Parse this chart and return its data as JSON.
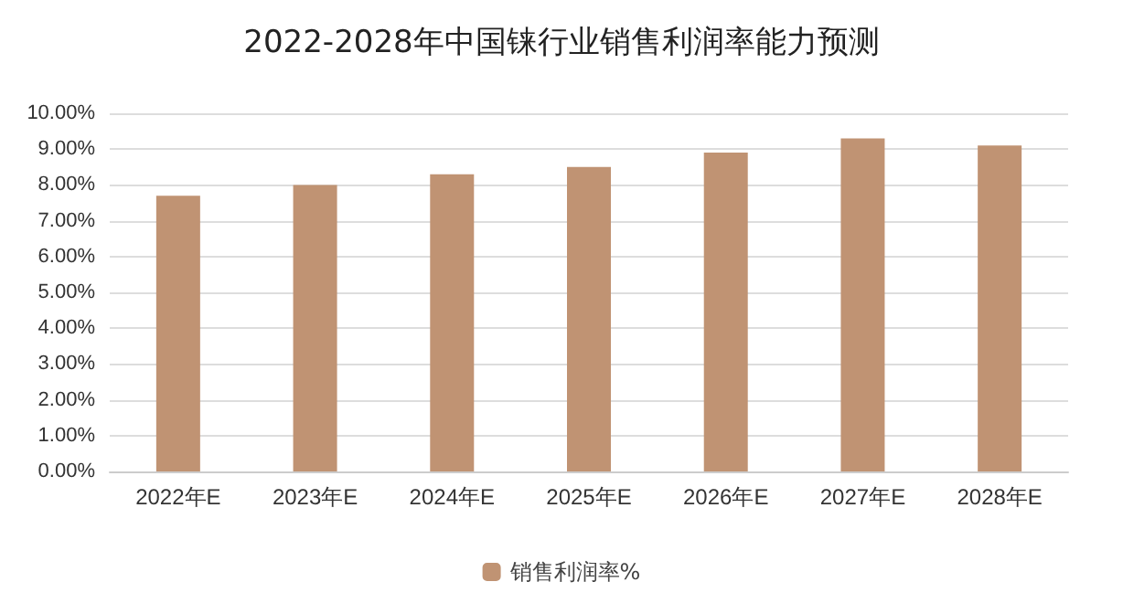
{
  "chart_data": {
    "type": "bar",
    "title": "2022-2028年中国铼行业销售利润率能力预测",
    "categories": [
      "2022年E",
      "2023年E",
      "2024年E",
      "2025年E",
      "2026年E",
      "2027年E",
      "2028年E"
    ],
    "series": [
      {
        "name": "销售利润率%",
        "color": "#c09373",
        "values": [
          7.7,
          8.0,
          8.3,
          8.5,
          8.9,
          9.3,
          9.1
        ]
      }
    ],
    "ylim": [
      0,
      10
    ],
    "yticks": [
      {
        "value": 0,
        "label": "0.00%"
      },
      {
        "value": 1,
        "label": "1.00%"
      },
      {
        "value": 2,
        "label": "2.00%"
      },
      {
        "value": 3,
        "label": "3.00%"
      },
      {
        "value": 4,
        "label": "4.00%"
      },
      {
        "value": 5,
        "label": "5.00%"
      },
      {
        "value": 6,
        "label": "6.00%"
      },
      {
        "value": 7,
        "label": "7.00%"
      },
      {
        "value": 8,
        "label": "8.00%"
      },
      {
        "value": 9,
        "label": "9.00%"
      },
      {
        "value": 10,
        "label": "10.00%"
      }
    ],
    "grid": "y",
    "legend": "bottom"
  }
}
